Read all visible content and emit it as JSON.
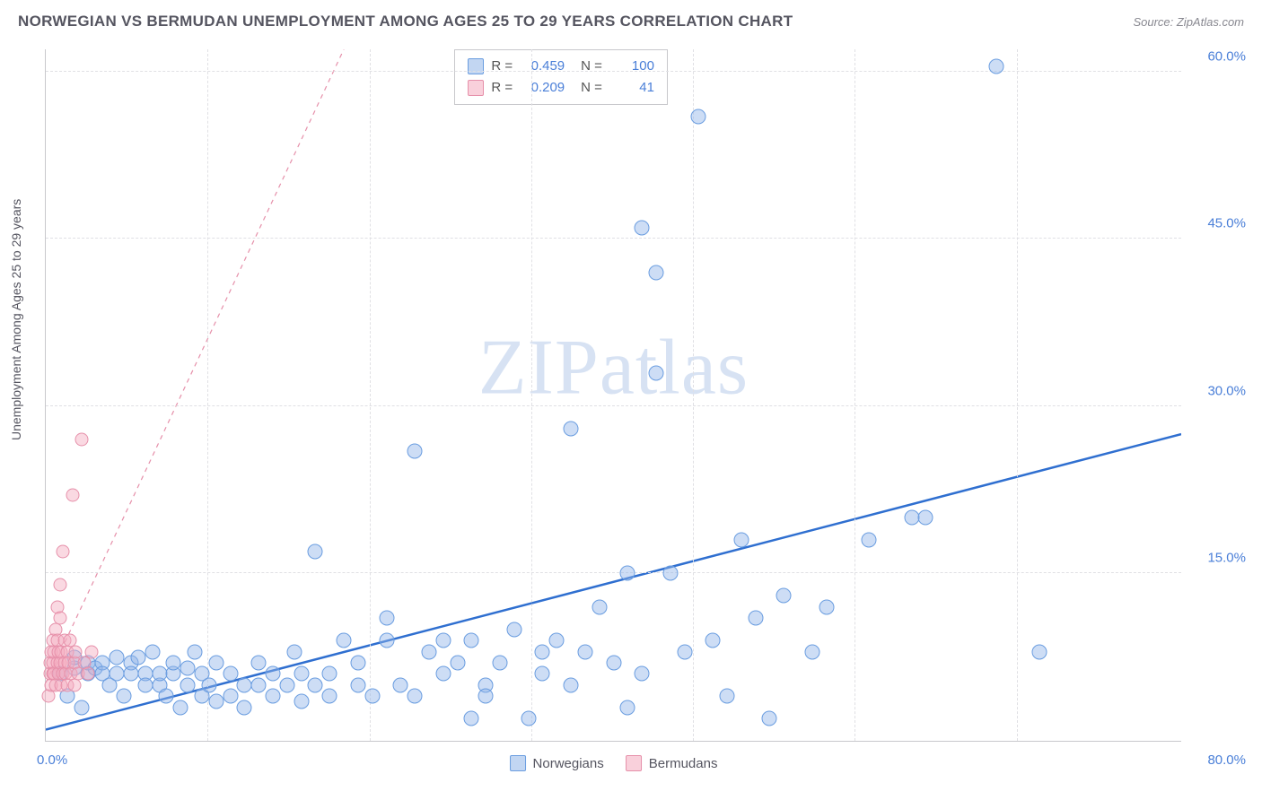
{
  "title": "NORWEGIAN VS BERMUDAN UNEMPLOYMENT AMONG AGES 25 TO 29 YEARS CORRELATION CHART",
  "source_label": "Source: ZipAtlas.com",
  "ylabel": "Unemployment Among Ages 25 to 29 years",
  "watermark_bold": "ZIP",
  "watermark_thin": "atlas",
  "chart": {
    "type": "scatter",
    "background_color": "#ffffff",
    "grid_color": "#e0e0e4",
    "axis_color": "#c8c8cc",
    "xlim": [
      0,
      80
    ],
    "ylim": [
      0,
      62
    ],
    "xticks": [
      0,
      80
    ],
    "xtick_labels": [
      "0.0%",
      "80.0%"
    ],
    "yticks": [
      15,
      30,
      45,
      60
    ],
    "ytick_labels": [
      "15.0%",
      "30.0%",
      "45.0%",
      "60.0%"
    ],
    "grid_v_positions": [
      11.4,
      22.8,
      34.2,
      45.6,
      57.0,
      68.4
    ],
    "grid_h_positions": [
      15,
      30,
      45,
      60
    ],
    "series": [
      {
        "name": "Norwegians",
        "color_fill": "rgba(144,180,232,0.45)",
        "color_border": "#6a9de0",
        "marker_size": 17,
        "R": "0.459",
        "N": "100",
        "trend": {
          "x1": 0,
          "y1": 1.0,
          "x2": 80,
          "y2": 27.5,
          "color": "#2f6fd0",
          "width": 2.5,
          "dash": "none"
        },
        "points": [
          [
            1,
            6
          ],
          [
            1.5,
            4
          ],
          [
            2,
            6.5
          ],
          [
            2,
            7.5
          ],
          [
            2.5,
            3
          ],
          [
            3,
            6
          ],
          [
            3,
            7
          ],
          [
            3.5,
            6.5
          ],
          [
            4,
            7
          ],
          [
            4,
            6
          ],
          [
            4.5,
            5
          ],
          [
            5,
            6
          ],
          [
            5,
            7.5
          ],
          [
            5.5,
            4
          ],
          [
            6,
            7
          ],
          [
            6,
            6
          ],
          [
            6.5,
            7.5
          ],
          [
            7,
            6
          ],
          [
            7,
            5
          ],
          [
            7.5,
            8
          ],
          [
            8,
            5
          ],
          [
            8,
            6
          ],
          [
            8.5,
            4
          ],
          [
            9,
            6
          ],
          [
            9,
            7
          ],
          [
            9.5,
            3
          ],
          [
            10,
            5
          ],
          [
            10,
            6.5
          ],
          [
            10.5,
            8
          ],
          [
            11,
            4
          ],
          [
            11,
            6
          ],
          [
            11.5,
            5
          ],
          [
            12,
            3.5
          ],
          [
            12,
            7
          ],
          [
            13,
            6
          ],
          [
            13,
            4
          ],
          [
            14,
            5
          ],
          [
            14,
            3
          ],
          [
            15,
            5
          ],
          [
            15,
            7
          ],
          [
            16,
            6
          ],
          [
            16,
            4
          ],
          [
            17,
            5
          ],
          [
            17.5,
            8
          ],
          [
            18,
            6
          ],
          [
            18,
            3.5
          ],
          [
            19,
            17
          ],
          [
            19,
            5
          ],
          [
            20,
            6
          ],
          [
            20,
            4
          ],
          [
            21,
            9
          ],
          [
            22,
            5
          ],
          [
            22,
            7
          ],
          [
            23,
            4
          ],
          [
            24,
            9
          ],
          [
            24,
            11
          ],
          [
            25,
            5
          ],
          [
            26,
            4
          ],
          [
            26,
            26
          ],
          [
            27,
            8
          ],
          [
            28,
            9
          ],
          [
            28,
            6
          ],
          [
            29,
            7
          ],
          [
            30,
            2
          ],
          [
            30,
            9
          ],
          [
            31,
            5
          ],
          [
            31,
            4
          ],
          [
            32,
            7
          ],
          [
            33,
            10
          ],
          [
            34,
            2
          ],
          [
            35,
            8
          ],
          [
            35,
            6
          ],
          [
            36,
            9
          ],
          [
            37,
            28
          ],
          [
            37,
            5
          ],
          [
            38,
            8
          ],
          [
            39,
            12
          ],
          [
            40,
            7
          ],
          [
            41,
            15
          ],
          [
            41,
            3
          ],
          [
            42,
            6
          ],
          [
            42,
            46
          ],
          [
            43,
            33
          ],
          [
            43,
            42
          ],
          [
            44,
            15
          ],
          [
            45,
            8
          ],
          [
            46,
            56
          ],
          [
            47,
            9
          ],
          [
            48,
            4
          ],
          [
            49,
            18
          ],
          [
            50,
            11
          ],
          [
            51,
            2
          ],
          [
            52,
            13
          ],
          [
            54,
            8
          ],
          [
            55,
            12
          ],
          [
            58,
            18
          ],
          [
            61,
            20
          ],
          [
            62,
            20
          ],
          [
            67,
            60.5
          ],
          [
            70,
            8
          ]
        ]
      },
      {
        "name": "Bermudans",
        "color_fill": "rgba(244,170,190,0.45)",
        "color_border": "#e690aa",
        "marker_size": 15,
        "R": "0.209",
        "N": "41",
        "trend": {
          "x1": 0,
          "y1": 5.2,
          "x2": 21,
          "y2": 62,
          "color": "#e690aa",
          "width": 1.2,
          "dash": "5,5"
        },
        "points": [
          [
            0.2,
            4
          ],
          [
            0.3,
            6
          ],
          [
            0.3,
            7
          ],
          [
            0.4,
            8
          ],
          [
            0.4,
            5
          ],
          [
            0.5,
            6
          ],
          [
            0.5,
            9
          ],
          [
            0.5,
            7
          ],
          [
            0.6,
            8
          ],
          [
            0.6,
            6
          ],
          [
            0.7,
            5
          ],
          [
            0.7,
            10
          ],
          [
            0.8,
            7
          ],
          [
            0.8,
            9
          ],
          [
            0.8,
            12
          ],
          [
            0.9,
            6
          ],
          [
            0.9,
            8
          ],
          [
            1.0,
            7
          ],
          [
            1.0,
            11
          ],
          [
            1.0,
            14
          ],
          [
            1.1,
            5
          ],
          [
            1.1,
            8
          ],
          [
            1.2,
            6
          ],
          [
            1.2,
            17
          ],
          [
            1.3,
            7
          ],
          [
            1.3,
            9
          ],
          [
            1.4,
            6
          ],
          [
            1.5,
            8
          ],
          [
            1.5,
            5
          ],
          [
            1.6,
            7
          ],
          [
            1.7,
            9
          ],
          [
            1.8,
            6
          ],
          [
            1.9,
            22
          ],
          [
            2.0,
            7
          ],
          [
            2.0,
            5
          ],
          [
            2.1,
            8
          ],
          [
            2.3,
            6
          ],
          [
            2.5,
            27
          ],
          [
            2.7,
            7
          ],
          [
            3.0,
            6
          ],
          [
            3.2,
            8
          ]
        ]
      }
    ]
  },
  "legend_blue": "Norwegians",
  "legend_pink": "Bermudans",
  "stats_label_R": "R =",
  "stats_label_N": "N ="
}
